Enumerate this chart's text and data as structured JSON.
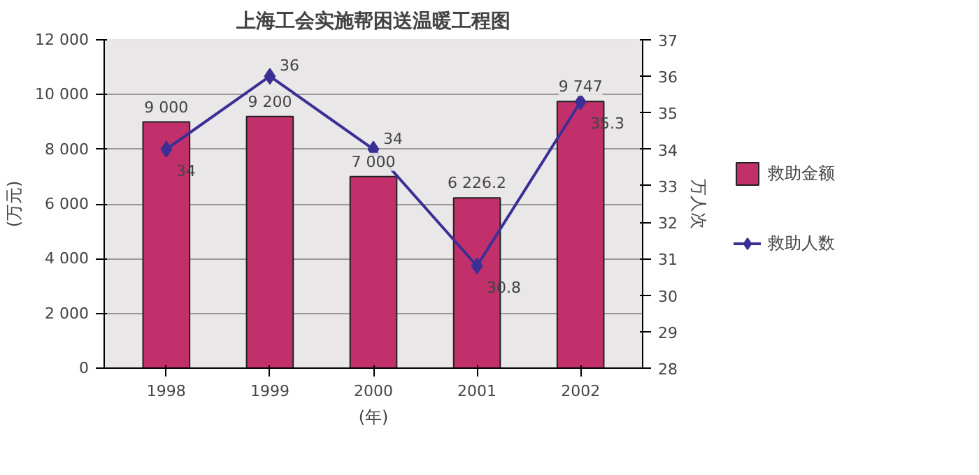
{
  "chart_data": {
    "type": "bar",
    "title": "上海工会实施帮困送温暖工程图",
    "ylabel": "(万元)",
    "y2label": "万人次",
    "xlabel": "(年)",
    "categories": [
      "1998",
      "1999",
      "2000",
      "2001",
      "2002"
    ],
    "series": [
      {
        "name": "救助金额",
        "color": "#c2306c",
        "values": [
          9000,
          9200,
          7000,
          6226.2,
          9747
        ],
        "value_labels": [
          "9 000",
          "9 200",
          "7 000",
          "6 226.2",
          "9 747"
        ]
      },
      {
        "name": "救助人数",
        "type": "line",
        "axis": "y2",
        "color": "#3b2f96",
        "values": [
          34,
          36,
          34,
          30.8,
          35.3
        ],
        "value_labels": [
          "34",
          "36",
          "34",
          "30.8",
          "35.3"
        ]
      }
    ],
    "ylim": [
      0,
      12000
    ],
    "yticks": [
      0,
      {
        "value": 2000,
        "label": "2 000"
      },
      {
        "value": 4000,
        "label": "4 000"
      },
      {
        "value": 6000,
        "label": "6 000"
      },
      {
        "value": 8000,
        "label": "8 000"
      },
      {
        "value": 10000,
        "label": "10 000"
      },
      {
        "value": 12000,
        "label": "12 000"
      }
    ],
    "y2lim": [
      28,
      37
    ],
    "y2ticks": [
      28,
      29,
      30,
      31,
      32,
      33,
      34,
      35,
      36,
      37
    ],
    "grid": "y",
    "legend": "right",
    "marker": "diamond",
    "line_style": "solid"
  }
}
